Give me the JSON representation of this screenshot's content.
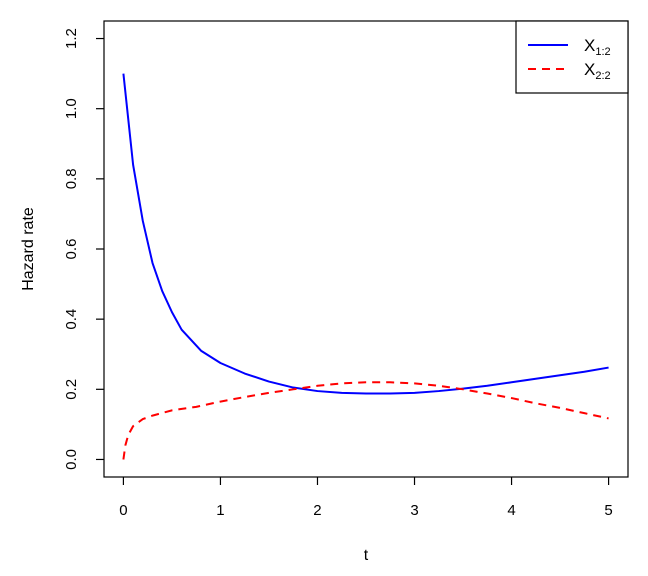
{
  "chart_data": {
    "type": "line",
    "title": "",
    "xlabel": "t",
    "ylabel": "Hazard rate",
    "xlim": [
      -0.2,
      5.2
    ],
    "ylim": [
      -0.05,
      1.25
    ],
    "x_ticks": [
      0,
      1,
      2,
      3,
      4,
      5
    ],
    "x_tick_labels": [
      "0",
      "1",
      "2",
      "3",
      "4",
      "5"
    ],
    "y_ticks": [
      0.0,
      0.2,
      0.4,
      0.6,
      0.8,
      1.0,
      1.2
    ],
    "y_tick_labels": [
      "0.0",
      "0.2",
      "0.4",
      "0.6",
      "0.8",
      "1.0",
      "1.2"
    ],
    "grid": false,
    "legend_position": "top-right",
    "series": [
      {
        "name": "X",
        "name_sub": "1:2",
        "color": "#0000ff",
        "style": "solid",
        "x": [
          0,
          0.1,
          0.2,
          0.3,
          0.4,
          0.5,
          0.6,
          0.8,
          1.0,
          1.25,
          1.5,
          1.75,
          2.0,
          2.25,
          2.5,
          2.75,
          3.0,
          3.25,
          3.5,
          3.75,
          4.0,
          4.25,
          4.5,
          4.75,
          5.0
        ],
        "y": [
          1.1,
          0.84,
          0.68,
          0.56,
          0.48,
          0.42,
          0.37,
          0.31,
          0.275,
          0.245,
          0.222,
          0.205,
          0.195,
          0.19,
          0.188,
          0.188,
          0.19,
          0.195,
          0.202,
          0.21,
          0.22,
          0.23,
          0.24,
          0.25,
          0.262
        ]
      },
      {
        "name": "X",
        "name_sub": "2:2",
        "color": "#ff0000",
        "style": "dashed",
        "x": [
          0,
          0.02,
          0.05,
          0.1,
          0.2,
          0.3,
          0.5,
          0.75,
          1.0,
          1.25,
          1.5,
          1.75,
          2.0,
          2.25,
          2.5,
          2.75,
          3.0,
          3.25,
          3.5,
          3.75,
          4.0,
          4.25,
          4.5,
          4.75,
          5.0
        ],
        "y": [
          0.0,
          0.04,
          0.07,
          0.095,
          0.115,
          0.125,
          0.14,
          0.15,
          0.165,
          0.178,
          0.19,
          0.2,
          0.21,
          0.217,
          0.22,
          0.22,
          0.217,
          0.21,
          0.2,
          0.188,
          0.175,
          0.16,
          0.147,
          0.132,
          0.117
        ]
      }
    ]
  }
}
